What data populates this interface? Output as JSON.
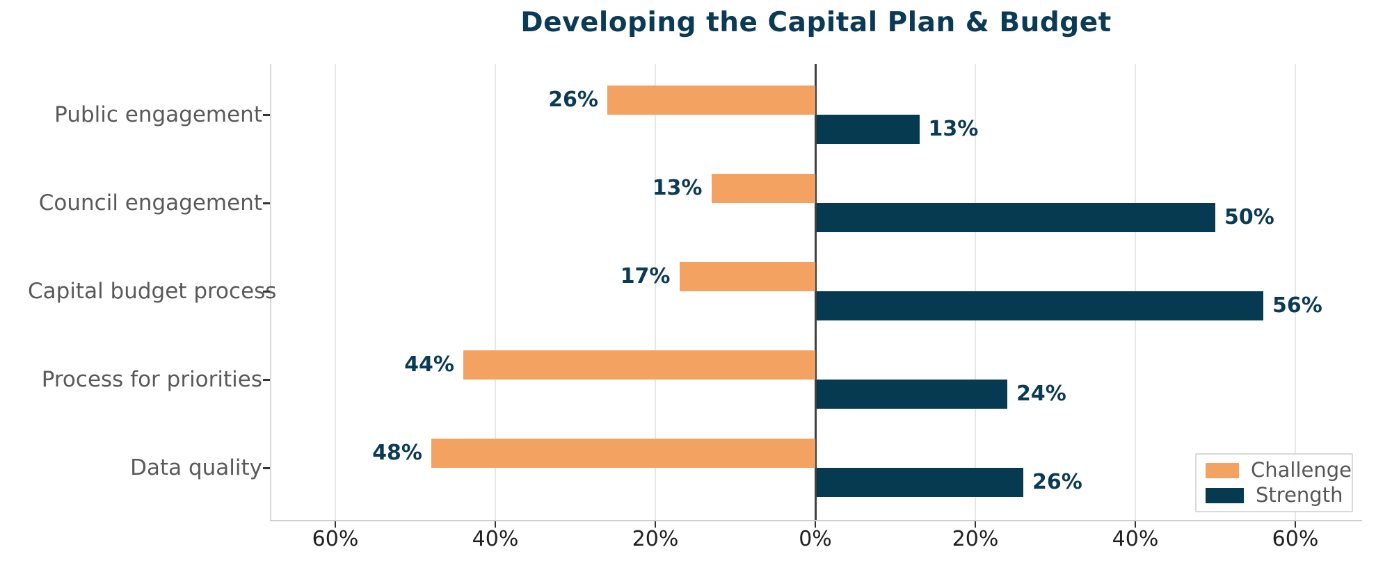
{
  "title": "Developing the Capital Plan & Budget",
  "chart_data": {
    "type": "bar",
    "variant": "horizontal-diverging",
    "categories": [
      "Public engagement",
      "Council engagement",
      "Capital budget process",
      "Process for priorities",
      "Data quality"
    ],
    "series": [
      {
        "name": "Challenge",
        "direction": "left",
        "color": "#F4A261",
        "values": [
          26,
          13,
          17,
          44,
          48
        ]
      },
      {
        "name": "Strength",
        "direction": "right",
        "color": "#053A50",
        "values": [
          13,
          50,
          56,
          24,
          26
        ]
      }
    ],
    "value_label_format": "{v}%",
    "x_ticks": [
      -60,
      -40,
      -20,
      0,
      20,
      40,
      60
    ],
    "x_tick_labels": [
      "60%",
      "40%",
      "20%",
      "0%",
      "20%",
      "40%",
      "60%"
    ],
    "xlim": [
      -68,
      68
    ],
    "grid": "vertical",
    "zero_line": true,
    "legend_position": "lower right"
  },
  "colors": {
    "title": "#0B3A55",
    "value_label": "#0B3A55",
    "category_label": "#595959",
    "tick_label": "#1f1f1f",
    "gridline": "#e7e7e7",
    "zero_line": "#404040"
  }
}
